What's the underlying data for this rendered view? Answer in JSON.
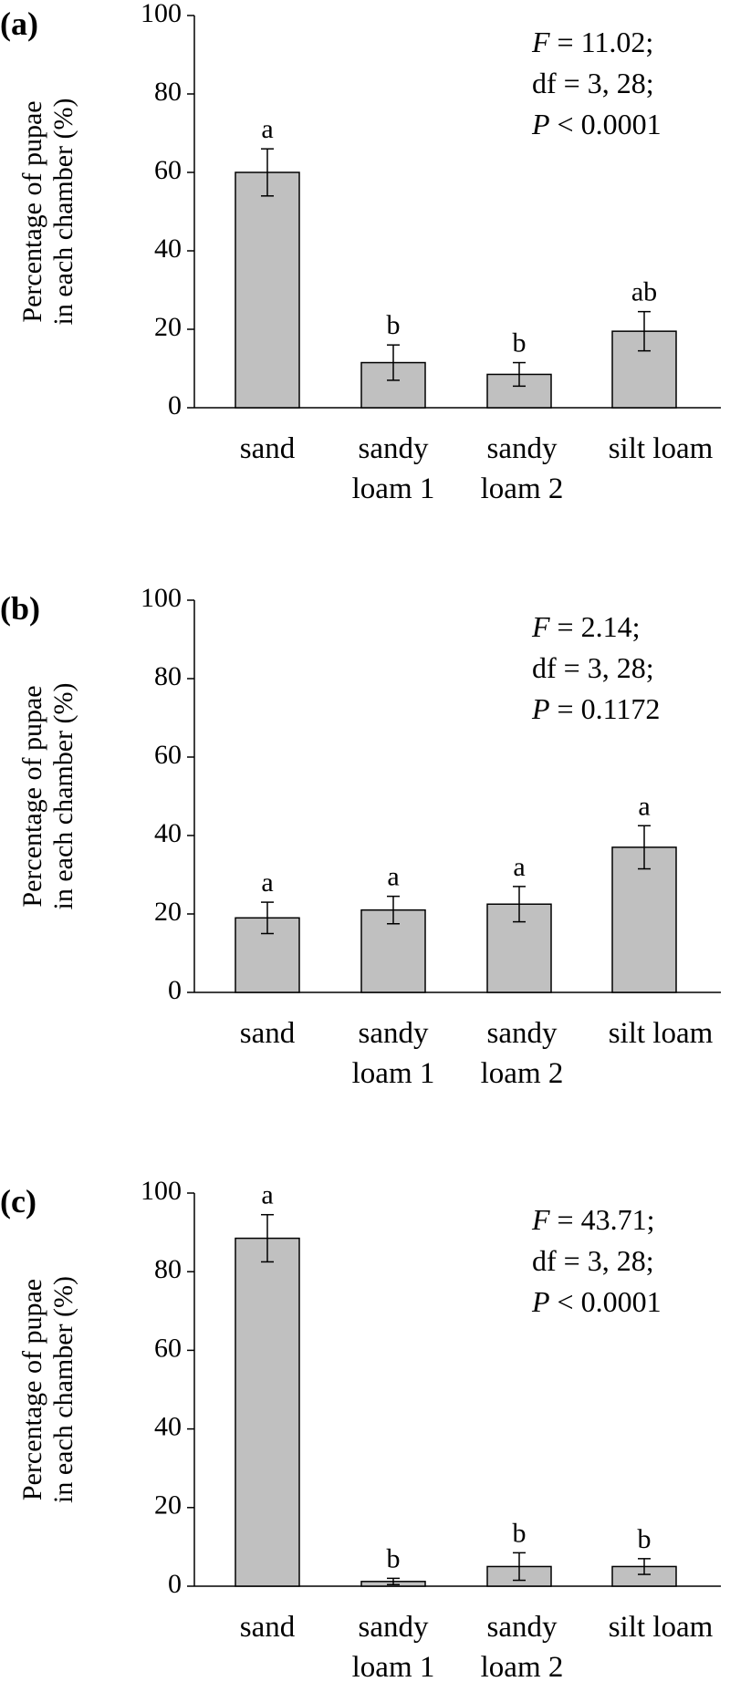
{
  "chart_data": [
    {
      "type": "bar",
      "panel_label": "(a)",
      "categories": [
        [
          "sand"
        ],
        [
          "sandy",
          "loam 1"
        ],
        [
          "sandy",
          "loam 2"
        ],
        [
          "silt loam"
        ]
      ],
      "values": [
        60,
        11.5,
        8.5,
        19.5
      ],
      "errors": [
        6,
        4.5,
        3,
        5
      ],
      "letters": [
        "a",
        "b",
        "b",
        "ab"
      ],
      "ylabel": [
        "Percentage of pupae",
        "in each chamber (%)"
      ],
      "ylim": [
        0,
        100
      ],
      "yticks": [
        "0",
        "20",
        "40",
        "60",
        "80",
        "100"
      ],
      "stats": [
        {
          "var": "F",
          "rest": " = 11.02;"
        },
        {
          "var": "",
          "rest": "df = 3, 28;"
        },
        {
          "var": "P",
          "rest": " < 0.0001"
        }
      ]
    },
    {
      "type": "bar",
      "panel_label": "(b)",
      "categories": [
        [
          "sand"
        ],
        [
          "sandy",
          "loam 1"
        ],
        [
          "sandy",
          "loam 2"
        ],
        [
          "silt loam"
        ]
      ],
      "values": [
        19,
        21,
        22.5,
        37
      ],
      "errors": [
        4,
        3.5,
        4.5,
        5.5
      ],
      "letters": [
        "a",
        "a",
        "a",
        "a"
      ],
      "ylabel": [
        "Percentage of pupae",
        "in each chamber (%)"
      ],
      "ylim": [
        0,
        100
      ],
      "yticks": [
        "0",
        "20",
        "40",
        "60",
        "80",
        "100"
      ],
      "stats": [
        {
          "var": "F",
          "rest": " = 2.14;"
        },
        {
          "var": "",
          "rest": "df = 3, 28;"
        },
        {
          "var": "P",
          "rest": " = 0.1172"
        }
      ]
    },
    {
      "type": "bar",
      "panel_label": "(c)",
      "categories": [
        [
          "sand"
        ],
        [
          "sandy",
          "loam 1"
        ],
        [
          "sandy",
          "loam 2"
        ],
        [
          "silt loam"
        ]
      ],
      "values": [
        88.5,
        1.2,
        5,
        5
      ],
      "errors": [
        6,
        0.8,
        3.5,
        2
      ],
      "letters": [
        "a",
        "b",
        "b",
        "b"
      ],
      "ylabel": [
        "Percentage of pupae",
        "in each chamber (%)"
      ],
      "ylim": [
        0,
        100
      ],
      "yticks": [
        "0",
        "20",
        "40",
        "60",
        "80",
        "100"
      ],
      "stats": [
        {
          "var": "F",
          "rest": " = 43.71;"
        },
        {
          "var": "",
          "rest": "df = 3, 28;"
        },
        {
          "var": "P",
          "rest": " < 0.0001"
        }
      ]
    }
  ]
}
